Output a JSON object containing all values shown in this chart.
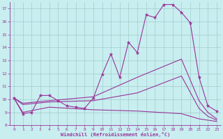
{
  "xlabel": "Windchill (Refroidissement éolien,°C)",
  "xlim": [
    -0.5,
    23.5
  ],
  "ylim": [
    8,
    17.5
  ],
  "yticks": [
    8,
    9,
    10,
    11,
    12,
    13,
    14,
    15,
    16,
    17
  ],
  "xticks": [
    0,
    1,
    2,
    3,
    4,
    5,
    6,
    7,
    8,
    9,
    10,
    11,
    12,
    13,
    14,
    15,
    16,
    17,
    18,
    19,
    20,
    21,
    22,
    23
  ],
  "bg_color": "#c8eef0",
  "line_color": "#993399",
  "grid_color": "#a0cccc",
  "series_main": {
    "x": [
      0,
      1,
      2,
      3,
      4,
      5,
      6,
      7,
      8,
      9,
      10,
      11,
      12,
      13,
      14,
      15,
      16,
      17,
      18,
      19,
      20,
      21,
      22,
      23
    ],
    "y": [
      10.1,
      8.9,
      9.0,
      10.3,
      10.3,
      9.9,
      9.5,
      9.4,
      9.3,
      10.1,
      11.9,
      13.5,
      11.7,
      14.4,
      13.6,
      16.5,
      16.3,
      17.3,
      17.3,
      16.7,
      15.9,
      11.7,
      9.5,
      9.1
    ]
  },
  "series_upper": {
    "x": [
      0,
      1,
      4,
      9,
      14,
      19,
      21,
      22,
      23
    ],
    "y": [
      10.1,
      9.7,
      9.9,
      10.2,
      11.7,
      13.1,
      9.9,
      9.0,
      8.5
    ]
  },
  "series_mid": {
    "x": [
      0,
      1,
      4,
      9,
      14,
      19,
      21,
      22,
      23
    ],
    "y": [
      10.1,
      9.6,
      9.8,
      9.9,
      10.5,
      11.8,
      9.3,
      8.7,
      8.4
    ]
  },
  "series_lower": {
    "x": [
      0,
      1,
      4,
      9,
      14,
      19,
      21,
      22,
      23
    ],
    "y": [
      10.1,
      9.0,
      9.4,
      9.2,
      9.1,
      8.9,
      8.5,
      8.4,
      8.3
    ]
  }
}
